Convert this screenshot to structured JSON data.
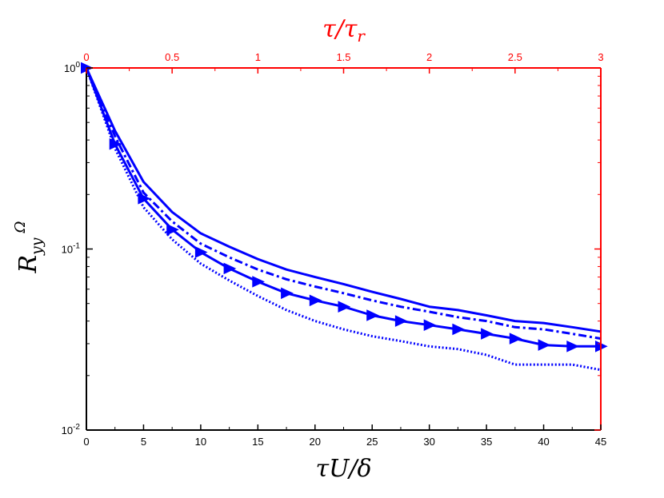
{
  "chart_data": {
    "type": "line",
    "xlabel": "τU/δ",
    "top_xlabel": "τ/τ",
    "top_xlabel_sub": "r",
    "ylabel": "R",
    "ylabel_sup": "Ω",
    "ylabel_sub": "yy",
    "xlim": [
      0,
      45
    ],
    "ylim": [
      0.01,
      1
    ],
    "yscale": "log",
    "top_xlim": [
      0,
      3
    ],
    "grid": false,
    "x_ticks": [
      "0",
      "5",
      "10",
      "15",
      "20",
      "25",
      "30",
      "35",
      "40",
      "45"
    ],
    "top_x_ticks": [
      "0",
      "0.5",
      "1",
      "1.5",
      "2",
      "2.5",
      "3"
    ],
    "y_ticks": [
      {
        "base": "10",
        "exp": "0",
        "value": 1
      },
      {
        "base": "10",
        "exp": "-1",
        "value": 0.1
      },
      {
        "base": "10",
        "exp": "-2",
        "value": 0.01
      }
    ],
    "colors": {
      "series": "#0000ff",
      "right_top_axis": "#ff0000",
      "axis": "#000000"
    },
    "series": [
      {
        "style": "solid",
        "x": [
          0,
          2.5,
          5,
          7.5,
          10,
          12.5,
          15,
          17.5,
          20,
          22.5,
          25,
          27.5,
          30,
          32.5,
          35,
          37.5,
          40,
          42.5,
          45
        ],
        "y": [
          1,
          0.45,
          0.235,
          0.16,
          0.122,
          0.103,
          0.088,
          0.077,
          0.07,
          0.064,
          0.058,
          0.053,
          0.048,
          0.046,
          0.043,
          0.04,
          0.039,
          0.037,
          0.035
        ]
      },
      {
        "style": "dashdot",
        "x": [
          0,
          2.5,
          5,
          7.5,
          10,
          12.5,
          15,
          17.5,
          20,
          22.5,
          25,
          27.5,
          30,
          32.5,
          35,
          37.5,
          40,
          42.5,
          45
        ],
        "y": [
          1,
          0.42,
          0.205,
          0.142,
          0.107,
          0.09,
          0.077,
          0.068,
          0.062,
          0.057,
          0.052,
          0.048,
          0.045,
          0.042,
          0.04,
          0.037,
          0.036,
          0.034,
          0.032
        ]
      },
      {
        "style": "solid-markers",
        "marker": "triangle-right",
        "x": [
          0,
          2.5,
          5,
          7.5,
          10,
          12.5,
          15,
          17.5,
          20,
          22.5,
          25,
          27.5,
          30,
          32.5,
          35,
          37.5,
          40,
          42.5,
          45
        ],
        "y": [
          1,
          0.38,
          0.19,
          0.128,
          0.096,
          0.078,
          0.066,
          0.057,
          0.052,
          0.048,
          0.043,
          0.04,
          0.038,
          0.036,
          0.034,
          0.032,
          0.0295,
          0.029,
          0.029
        ]
      },
      {
        "style": "dotted",
        "x": [
          0,
          2.5,
          5,
          7.5,
          10,
          12.5,
          15,
          17.5,
          20,
          22.5,
          25,
          27.5,
          30,
          32.5,
          35,
          37.5,
          40,
          42.5,
          45
        ],
        "y": [
          1,
          0.36,
          0.17,
          0.113,
          0.083,
          0.067,
          0.055,
          0.046,
          0.04,
          0.036,
          0.033,
          0.031,
          0.029,
          0.028,
          0.026,
          0.023,
          0.023,
          0.023,
          0.0215
        ]
      }
    ]
  }
}
